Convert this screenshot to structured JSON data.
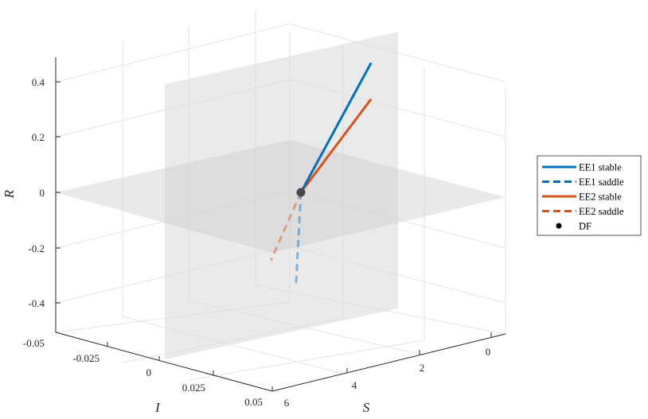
{
  "chart_data": {
    "type": "line3d",
    "xlabel": "S",
    "ylabel": "I",
    "zlabel": "R",
    "xticks": [
      "0",
      "2",
      "4",
      "6"
    ],
    "yticks": [
      "-0.025",
      "0",
      "0.025",
      "0.05"
    ],
    "yticks_extra": [
      "-0.05"
    ],
    "zticks": [
      "-0.4",
      "-0.2",
      "0",
      "0.2",
      "0.4"
    ],
    "xlim": [
      0,
      6
    ],
    "ylim": [
      -0.05,
      0.05
    ],
    "zlim": [
      -0.5,
      0.5
    ],
    "grid": true,
    "legend_position": "right",
    "series": [
      {
        "name": "EE1 stable",
        "style": "solid",
        "color": "#0072BD",
        "points": [
          [
            3.0,
            0,
            0
          ],
          [
            0.2,
            0.0,
            0.36
          ]
        ]
      },
      {
        "name": "EE1 saddle",
        "style": "dashed",
        "color": "#0072BD",
        "points": [
          [
            3.0,
            0,
            0
          ],
          [
            3.2,
            0.0,
            -0.33
          ]
        ]
      },
      {
        "name": "EE2 stable",
        "style": "solid",
        "color": "#D95319",
        "points": [
          [
            3.0,
            0,
            0
          ],
          [
            0.2,
            0.0,
            0.23
          ]
        ]
      },
      {
        "name": "EE2 saddle",
        "style": "dashed",
        "color": "#D95319",
        "points": [
          [
            3.0,
            0,
            0
          ],
          [
            4.2,
            0.0,
            -0.2
          ]
        ]
      },
      {
        "name": "DF",
        "style": "marker",
        "color": "#000000",
        "points": [
          [
            3.0,
            0,
            0
          ]
        ]
      }
    ],
    "planes": [
      "R = 0",
      "I = 0"
    ]
  }
}
